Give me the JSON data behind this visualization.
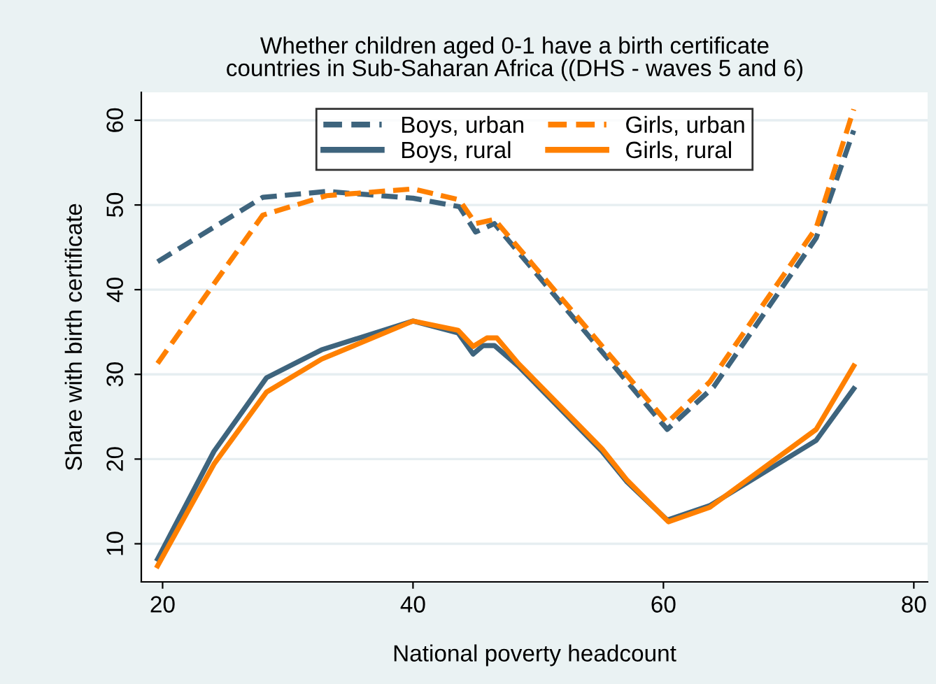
{
  "chart_data": {
    "type": "line",
    "title": "Whether children aged 0-1 have a birth certificate\ncountries in Sub-Saharan Africa ((DHS - waves 5 and 6)",
    "xlabel": "National poverty headcount",
    "ylabel": "Share with birth certificate",
    "xlim": [
      18.3,
      81.1
    ],
    "ylim": [
      5.5,
      63.3
    ],
    "xticks": [
      20,
      40,
      60,
      80
    ],
    "yticks": [
      10,
      20,
      30,
      40,
      50,
      60
    ],
    "grid": "y",
    "legend": "top",
    "series": [
      {
        "name": "Boys, urban",
        "color": "#3e647d",
        "line_style": "dashed",
        "x": [
          19.6,
          28.0,
          33.1,
          40,
          43.7,
          45.0,
          46.5,
          60.3,
          64.0,
          72.2,
          75.2
        ],
        "values": [
          43.3,
          50.9,
          51.6,
          50.8,
          49.8,
          46.8,
          47.8,
          23.5,
          28.5,
          46.1,
          58.8
        ]
      },
      {
        "name": "Boys, rural",
        "color": "#3e647d",
        "line_style": "solid",
        "x": [
          19.6,
          24.1,
          28.3,
          32.7,
          40,
          43.6,
          44.8,
          45.6,
          46.5,
          48.4,
          55.1,
          57.1,
          60.3,
          63.7,
          72.2,
          75.2
        ],
        "values": [
          8.2,
          20.9,
          29.6,
          32.9,
          36.3,
          34.9,
          32.4,
          33.4,
          33.4,
          31.0,
          20.9,
          17.3,
          12.8,
          14.5,
          22.2,
          28.3
        ]
      },
      {
        "name": "Girls, urban",
        "color": "#ff8000",
        "line_style": "dashed",
        "x": [
          19.6,
          28.0,
          33.1,
          40,
          43.7,
          45.0,
          46.5,
          60.3,
          63.7,
          72.2,
          75.2
        ],
        "values": [
          31.3,
          48.8,
          51.1,
          51.9,
          50.6,
          47.8,
          48.3,
          24.3,
          29.1,
          47.3,
          61.3
        ]
      },
      {
        "name": "Girls, rural",
        "color": "#ff8000",
        "line_style": "solid",
        "x": [
          19.6,
          24.1,
          28.3,
          32.7,
          40,
          43.6,
          44.8,
          45.9,
          46.7,
          48.4,
          55.1,
          57.1,
          60.4,
          63.7,
          72.2,
          75.2
        ],
        "values": [
          7.4,
          19.4,
          27.9,
          31.8,
          36.3,
          35.2,
          33.3,
          34.3,
          34.3,
          31.3,
          21.2,
          17.5,
          12.6,
          14.3,
          23.5,
          31.0
        ]
      }
    ]
  }
}
